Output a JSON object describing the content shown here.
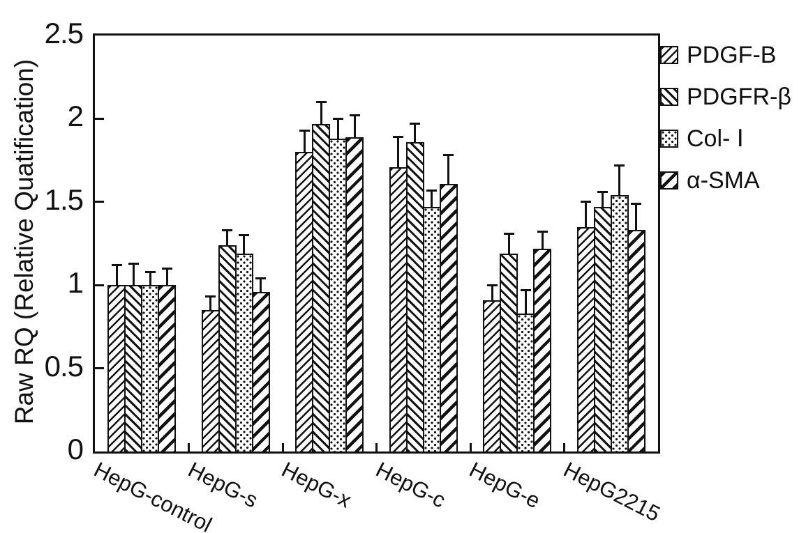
{
  "figure": {
    "background": "#ffffff",
    "ink": "#111111"
  },
  "chart_data": {
    "type": "bar",
    "title": "",
    "ylabel": "Raw RQ (Relative Quatification)",
    "xlabel": "",
    "ylim": [
      0,
      2.5
    ],
    "yticks": [
      {
        "value": 0,
        "label": "0"
      },
      {
        "value": 0.5,
        "label": "0.5"
      },
      {
        "value": 1,
        "label": "1"
      },
      {
        "value": 1.5,
        "label": "1.5"
      },
      {
        "value": 2,
        "label": "2"
      },
      {
        "value": 2.5,
        "label": "2.5"
      }
    ],
    "categories": [
      "HepG-control",
      "HepG-s",
      "HepG-x",
      "HepG-c",
      "HepG-e",
      "HepG2215"
    ],
    "series": [
      {
        "name": "PDGF-B",
        "pattern": "hatch-forward-thin",
        "values": [
          1.0,
          0.85,
          1.8,
          1.71,
          0.91,
          1.35
        ],
        "errors": [
          0.12,
          0.08,
          0.13,
          0.18,
          0.09,
          0.15
        ]
      },
      {
        "name": "PDGFR-β",
        "pattern": "hatch-backward",
        "values": [
          1.0,
          1.24,
          1.97,
          1.86,
          1.19,
          1.47
        ],
        "errors": [
          0.13,
          0.09,
          0.13,
          0.11,
          0.12,
          0.09
        ]
      },
      {
        "name": "Col- Ⅰ",
        "pattern": "dots",
        "values": [
          1.0,
          1.19,
          1.88,
          1.47,
          0.83,
          1.54
        ],
        "errors": [
          0.08,
          0.11,
          0.12,
          0.1,
          0.14,
          0.18
        ]
      },
      {
        "name": "α-SMA",
        "pattern": "hatch-forward-bold",
        "values": [
          1.0,
          0.96,
          1.89,
          1.61,
          1.22,
          1.33
        ],
        "errors": [
          0.1,
          0.08,
          0.13,
          0.17,
          0.1,
          0.16
        ]
      }
    ],
    "legend_position": "outside-right",
    "grid": false,
    "error_bars": "upper"
  }
}
